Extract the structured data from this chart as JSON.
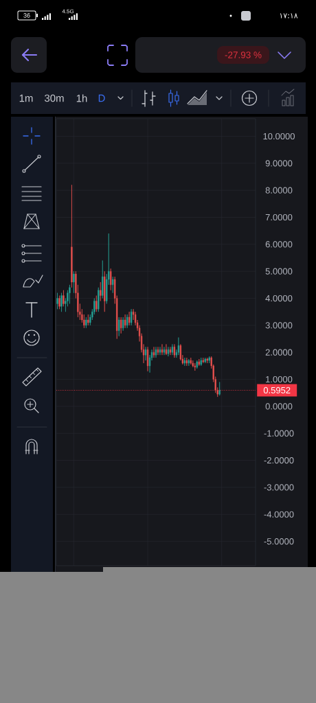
{
  "chart_data": {
    "type": "candlestick",
    "subtitle": "-27.93 %",
    "annotations": [
      "36",
      "4.5G",
      "١٧:١٨",
      "1m",
      "30m",
      "1h",
      "D"
    ],
    "categories": [
      null,
      null,
      null,
      null,
      null,
      null,
      null,
      null,
      null,
      null,
      null,
      null,
      null,
      null,
      null,
      null,
      null,
      null,
      null,
      null,
      null,
      null,
      null,
      null,
      null,
      null,
      null,
      null,
      null,
      null,
      null,
      null,
      null,
      null,
      null,
      null,
      null,
      null,
      null,
      null,
      null,
      null,
      null,
      null,
      null,
      null,
      null,
      null,
      null,
      null,
      null,
      null,
      null,
      null,
      null,
      null,
      null,
      null,
      null,
      null,
      null,
      null,
      null,
      null,
      null,
      null,
      null,
      null,
      null,
      null,
      null,
      null,
      null,
      null,
      null,
      null,
      null,
      null,
      null,
      null,
      null,
      null,
      null,
      null,
      null,
      null,
      null,
      null,
      null,
      null,
      null,
      null,
      null,
      null,
      null,
      null,
      null
    ],
    "ohlc": [
      [
        3.8,
        4.2,
        3.6,
        4.0
      ],
      [
        4.0,
        4.1,
        3.6,
        3.7
      ],
      [
        3.7,
        4.2,
        3.5,
        4.1
      ],
      [
        4.1,
        4.3,
        3.7,
        3.8
      ],
      [
        3.8,
        4.0,
        3.5,
        3.9
      ],
      [
        3.9,
        4.3,
        3.7,
        4.2
      ],
      [
        4.2,
        4.5,
        3.8,
        4.4
      ],
      [
        5.9,
        8.2,
        4.4,
        4.6
      ],
      [
        4.6,
        5.0,
        4.2,
        4.9
      ],
      [
        4.9,
        5.0,
        4.0,
        4.2
      ],
      [
        4.2,
        4.5,
        3.3,
        3.5
      ],
      [
        3.5,
        3.8,
        3.2,
        3.4
      ],
      [
        3.4,
        3.6,
        3.1,
        3.2
      ],
      [
        3.2,
        3.4,
        2.9,
        3.0
      ],
      [
        3.0,
        3.3,
        2.9,
        3.2
      ],
      [
        3.2,
        3.4,
        3.0,
        3.1
      ],
      [
        3.1,
        3.4,
        3.0,
        3.3
      ],
      [
        3.3,
        3.6,
        3.2,
        3.5
      ],
      [
        3.5,
        4.0,
        3.4,
        3.9
      ],
      [
        3.9,
        4.1,
        3.5,
        3.6
      ],
      [
        3.6,
        4.4,
        3.5,
        4.3
      ],
      [
        4.3,
        4.6,
        3.9,
        4.1
      ],
      [
        4.1,
        5.4,
        4.0,
        4.8
      ],
      [
        4.8,
        5.0,
        3.5,
        3.9
      ],
      [
        3.9,
        4.9,
        3.8,
        4.7
      ],
      [
        4.7,
        6.4,
        4.5,
        5.0
      ],
      [
        5.0,
        5.1,
        4.3,
        4.5
      ],
      [
        4.5,
        4.8,
        4.2,
        4.7
      ],
      [
        4.7,
        4.8,
        3.8,
        4.0
      ],
      [
        4.0,
        4.1,
        2.5,
        2.8
      ],
      [
        2.8,
        3.3,
        2.6,
        3.2
      ],
      [
        3.2,
        3.3,
        2.7,
        2.9
      ],
      [
        2.9,
        3.3,
        2.8,
        3.2
      ],
      [
        3.2,
        3.4,
        2.9,
        3.0
      ],
      [
        3.0,
        3.4,
        2.9,
        3.3
      ],
      [
        3.3,
        3.5,
        3.0,
        3.1
      ],
      [
        3.1,
        3.6,
        3.0,
        3.5
      ],
      [
        3.5,
        3.6,
        3.2,
        3.4
      ],
      [
        3.4,
        3.5,
        3.0,
        3.1
      ],
      [
        3.1,
        3.2,
        2.8,
        2.9
      ],
      [
        2.9,
        3.0,
        2.4,
        2.6
      ],
      [
        2.6,
        2.7,
        2.0,
        2.1
      ],
      [
        2.1,
        2.3,
        1.6,
        1.9
      ],
      [
        1.9,
        2.2,
        1.7,
        2.1
      ],
      [
        2.1,
        2.2,
        1.3,
        1.5
      ],
      [
        1.5,
        1.9,
        1.25,
        1.8
      ],
      [
        1.8,
        2.1,
        1.7,
        2.0
      ],
      [
        2.0,
        2.2,
        1.8,
        1.9
      ],
      [
        1.9,
        2.2,
        1.8,
        2.1
      ],
      [
        2.1,
        2.2,
        1.9,
        2.0
      ],
      [
        2.0,
        2.2,
        1.9,
        2.1
      ],
      [
        2.1,
        2.3,
        1.9,
        2.0
      ],
      [
        2.0,
        2.2,
        1.9,
        2.1
      ],
      [
        2.1,
        2.3,
        1.9,
        1.95
      ],
      [
        1.95,
        2.2,
        1.85,
        2.1
      ],
      [
        2.1,
        2.2,
        1.9,
        2.0
      ],
      [
        2.0,
        2.3,
        1.9,
        2.2
      ],
      [
        2.2,
        2.3,
        1.8,
        1.9
      ],
      [
        1.9,
        2.1,
        1.8,
        2.0
      ],
      [
        2.0,
        2.55,
        1.9,
        2.25
      ],
      [
        2.25,
        2.3,
        1.7,
        1.75
      ],
      [
        1.75,
        1.9,
        1.55,
        1.6
      ],
      [
        1.6,
        1.8,
        1.5,
        1.7
      ],
      [
        1.7,
        1.8,
        1.5,
        1.6
      ],
      [
        1.6,
        1.75,
        1.5,
        1.7
      ],
      [
        1.7,
        1.8,
        1.55,
        1.6
      ],
      [
        1.6,
        1.7,
        1.45,
        1.5
      ],
      [
        1.5,
        1.6,
        1.32,
        1.45
      ],
      [
        1.45,
        1.7,
        1.4,
        1.65
      ],
      [
        1.65,
        1.75,
        1.5,
        1.55
      ],
      [
        1.55,
        1.8,
        1.5,
        1.7
      ],
      [
        1.7,
        1.8,
        1.6,
        1.65
      ],
      [
        1.65,
        1.8,
        1.6,
        1.75
      ],
      [
        1.75,
        1.8,
        1.6,
        1.7
      ],
      [
        1.7,
        1.85,
        1.6,
        1.8
      ],
      [
        1.8,
        1.85,
        1.4,
        1.5
      ],
      [
        1.5,
        1.55,
        0.9,
        1.0
      ],
      [
        1.0,
        1.1,
        0.5,
        0.6
      ],
      [
        0.6,
        0.7,
        0.35,
        0.45
      ],
      [
        0.45,
        0.9,
        0.4,
        0.6
      ],
      null,
      null,
      null,
      null,
      null,
      null,
      null,
      null,
      null,
      null,
      null,
      null,
      null,
      null,
      null,
      null,
      null
    ],
    "colors": [
      "#26a69a",
      "#ef5350",
      "#26a69a",
      "#ef5350",
      "#26a69a",
      "#26a69a",
      "#26a69a",
      "#ef5350",
      "#26a69a",
      "#ef5350",
      "#ef5350",
      "#ef5350",
      "#ef5350",
      "#ef5350",
      "#26a69a",
      "#ef5350",
      "#26a69a",
      "#26a69a",
      "#26a69a",
      "#ef5350",
      "#26a69a",
      "#ef5350",
      "#26a69a",
      "#ef5350",
      "#26a69a",
      "#26a69a",
      "#ef5350",
      "#26a69a",
      "#ef5350",
      "#ef5350",
      "#26a69a",
      "#ef5350",
      "#26a69a",
      "#ef5350",
      "#26a69a",
      "#ef5350",
      "#26a69a",
      "#ef5350",
      "#ef5350",
      "#ef5350",
      "#ef5350",
      "#ef5350",
      "#ef5350",
      "#26a69a",
      "#ef5350",
      "#26a69a",
      "#26a69a",
      "#ef5350",
      "#26a69a",
      "#ef5350",
      "#26a69a",
      "#ef5350",
      "#26a69a",
      "#ef5350",
      "#26a69a",
      "#ef5350",
      "#26a69a",
      "#ef5350",
      "#26a69a",
      "#26a69a",
      "#ef5350",
      "#ef5350",
      "#26a69a",
      "#ef5350",
      "#26a69a",
      "#ef5350",
      "#ef5350",
      "#ef5350",
      "#26a69a",
      "#ef5350",
      "#26a69a",
      "#ef5350",
      "#26a69a",
      "#ef5350",
      "#26a69a",
      "#ef5350",
      "#ef5350",
      "#ef5350",
      "#ef5350",
      "#26a69a",
      null,
      null,
      null,
      null,
      null,
      null,
      null,
      null,
      null,
      null,
      null,
      null,
      null,
      null,
      null,
      null,
      null
    ],
    "ylim": [
      -5.9,
      10.65
    ],
    "yticks": [
      {
        "value": 10,
        "label": "10.0000"
      },
      {
        "value": 9,
        "label": "9.0000"
      },
      {
        "value": 8,
        "label": "8.0000"
      },
      {
        "value": 7,
        "label": "7.0000"
      },
      {
        "value": 6,
        "label": "6.0000"
      },
      {
        "value": 5,
        "label": "5.0000"
      },
      {
        "value": 4,
        "label": "4.0000"
      },
      {
        "value": 3,
        "label": "3.0000"
      },
      {
        "value": 2,
        "label": "2.0000"
      },
      {
        "value": 1,
        "label": "1.0000"
      },
      {
        "value": 0,
        "label": "0.0000"
      },
      {
        "value": -1,
        "label": "-1.0000"
      },
      {
        "value": -2,
        "label": "-2.0000"
      },
      {
        "value": -3,
        "label": "-3.0000"
      },
      {
        "value": -4,
        "label": "-4.0000"
      },
      {
        "value": -5,
        "label": "-5.0000"
      }
    ],
    "grid": true,
    "tick_labels": "y",
    "ref_lines": [
      {
        "axis": "y",
        "value": 0.5952,
        "label": "0.5952",
        "color": "#f23645",
        "line_style": "dotted"
      }
    ]
  }
}
